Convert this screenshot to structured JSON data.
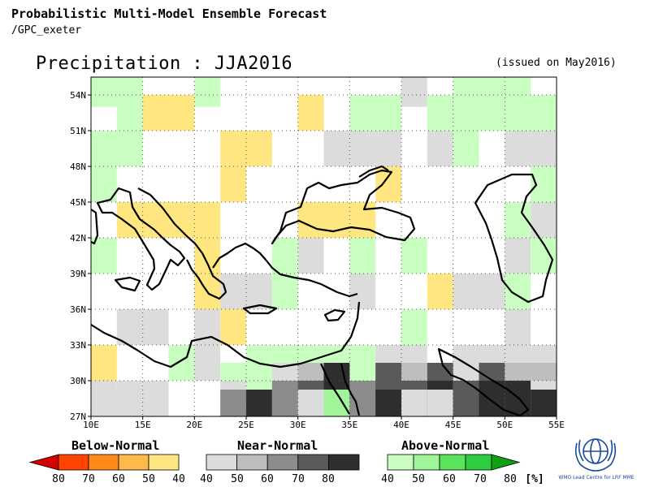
{
  "header": {
    "line1": "Probabilistic Multi-Model Ensemble Forecast",
    "line2": "/GPC_exeter"
  },
  "title": "Precipitation : JJA2016",
  "issued": "(issued on May2016)",
  "map": {
    "lon_ticks": [
      "10E",
      "15E",
      "20E",
      "25E",
      "30E",
      "35E",
      "40E",
      "45E",
      "50E",
      "55E"
    ],
    "lat_ticks": [
      "54N",
      "51N",
      "48N",
      "45N",
      "42N",
      "39N",
      "36N",
      "33N",
      "30N",
      "27N"
    ],
    "lon_range": [
      10,
      55
    ],
    "lat_range": [
      27,
      55.5
    ],
    "grid_style": "dotted",
    "cell_deg": [
      2.5,
      3
    ],
    "cells": [
      {
        "lon": 11.25,
        "lat": 54.5,
        "cat": "A40"
      },
      {
        "lon": 13.75,
        "lat": 54.5,
        "cat": "A40"
      },
      {
        "lon": 21.25,
        "lat": 54.5,
        "cat": "A40"
      },
      {
        "lon": 41.25,
        "lat": 54.5,
        "cat": "N40"
      },
      {
        "lon": 46.25,
        "lat": 54.5,
        "cat": "A40"
      },
      {
        "lon": 48.75,
        "lat": 54.5,
        "cat": "A40"
      },
      {
        "lon": 51.25,
        "lat": 54.5,
        "cat": "A40"
      },
      {
        "lon": 13.75,
        "lat": 52.5,
        "cat": "A40"
      },
      {
        "lon": 16.25,
        "lat": 52.5,
        "cat": "B40"
      },
      {
        "lon": 18.75,
        "lat": 52.5,
        "cat": "B40"
      },
      {
        "lon": 31.25,
        "lat": 52.5,
        "cat": "B40"
      },
      {
        "lon": 36.25,
        "lat": 52.5,
        "cat": "A40"
      },
      {
        "lon": 38.75,
        "lat": 52.5,
        "cat": "A40"
      },
      {
        "lon": 43.75,
        "lat": 52.5,
        "cat": "A40"
      },
      {
        "lon": 46.25,
        "lat": 52.5,
        "cat": "A40"
      },
      {
        "lon": 48.75,
        "lat": 52.5,
        "cat": "A40"
      },
      {
        "lon": 51.25,
        "lat": 52.5,
        "cat": "A40"
      },
      {
        "lon": 53.75,
        "lat": 52.5,
        "cat": "A40"
      },
      {
        "lon": 11.25,
        "lat": 49.5,
        "cat": "A40"
      },
      {
        "lon": 13.75,
        "lat": 49.5,
        "cat": "A40"
      },
      {
        "lon": 23.75,
        "lat": 49.5,
        "cat": "B40"
      },
      {
        "lon": 26.25,
        "lat": 49.5,
        "cat": "B40"
      },
      {
        "lon": 33.75,
        "lat": 49.5,
        "cat": "N40"
      },
      {
        "lon": 36.25,
        "lat": 49.5,
        "cat": "N40"
      },
      {
        "lon": 38.75,
        "lat": 49.5,
        "cat": "N40"
      },
      {
        "lon": 43.75,
        "lat": 49.5,
        "cat": "N40"
      },
      {
        "lon": 46.25,
        "lat": 49.5,
        "cat": "A40"
      },
      {
        "lon": 51.25,
        "lat": 49.5,
        "cat": "N40"
      },
      {
        "lon": 53.75,
        "lat": 49.5,
        "cat": "N40"
      },
      {
        "lon": 11.25,
        "lat": 46.5,
        "cat": "A40"
      },
      {
        "lon": 23.75,
        "lat": 46.5,
        "cat": "B40"
      },
      {
        "lon": 38.75,
        "lat": 46.5,
        "cat": "B40"
      },
      {
        "lon": 53.75,
        "lat": 46.5,
        "cat": "A40"
      },
      {
        "lon": 13.75,
        "lat": 43.5,
        "cat": "B40"
      },
      {
        "lon": 16.25,
        "lat": 43.5,
        "cat": "B40"
      },
      {
        "lon": 18.75,
        "lat": 43.5,
        "cat": "B40"
      },
      {
        "lon": 21.25,
        "lat": 43.5,
        "cat": "B40"
      },
      {
        "lon": 31.25,
        "lat": 43.5,
        "cat": "B40"
      },
      {
        "lon": 33.75,
        "lat": 43.5,
        "cat": "B40"
      },
      {
        "lon": 36.25,
        "lat": 43.5,
        "cat": "B40"
      },
      {
        "lon": 51.25,
        "lat": 43.5,
        "cat": "A40"
      },
      {
        "lon": 53.75,
        "lat": 43.5,
        "cat": "N40"
      },
      {
        "lon": 11.25,
        "lat": 40.5,
        "cat": "A40"
      },
      {
        "lon": 21.25,
        "lat": 40.5,
        "cat": "B40"
      },
      {
        "lon": 28.75,
        "lat": 40.5,
        "cat": "A40"
      },
      {
        "lon": 31.25,
        "lat": 40.5,
        "cat": "N40"
      },
      {
        "lon": 36.25,
        "lat": 40.5,
        "cat": "A40"
      },
      {
        "lon": 41.25,
        "lat": 40.5,
        "cat": "A40"
      },
      {
        "lon": 51.25,
        "lat": 40.5,
        "cat": "N40"
      },
      {
        "lon": 53.75,
        "lat": 40.5,
        "cat": "A40"
      },
      {
        "lon": 21.25,
        "lat": 37.5,
        "cat": "B40"
      },
      {
        "lon": 23.75,
        "lat": 37.5,
        "cat": "N40"
      },
      {
        "lon": 26.25,
        "lat": 37.5,
        "cat": "N40"
      },
      {
        "lon": 28.75,
        "lat": 37.5,
        "cat": "A40"
      },
      {
        "lon": 36.25,
        "lat": 37.5,
        "cat": "N40"
      },
      {
        "lon": 43.75,
        "lat": 37.5,
        "cat": "B40"
      },
      {
        "lon": 46.25,
        "lat": 37.5,
        "cat": "N40"
      },
      {
        "lon": 48.75,
        "lat": 37.5,
        "cat": "N40"
      },
      {
        "lon": 51.25,
        "lat": 37.5,
        "cat": "A40"
      },
      {
        "lon": 13.75,
        "lat": 34.5,
        "cat": "N40"
      },
      {
        "lon": 16.25,
        "lat": 34.5,
        "cat": "N40"
      },
      {
        "lon": 21.25,
        "lat": 34.5,
        "cat": "N40"
      },
      {
        "lon": 23.75,
        "lat": 34.5,
        "cat": "B40"
      },
      {
        "lon": 41.25,
        "lat": 34.5,
        "cat": "A40"
      },
      {
        "lon": 51.25,
        "lat": 34.5,
        "cat": "N40"
      },
      {
        "lon": 11.25,
        "lat": 31.5,
        "cat": "B40"
      },
      {
        "lon": 18.75,
        "lat": 31.5,
        "cat": "A40"
      },
      {
        "lon": 21.25,
        "lat": 31.5,
        "cat": "N40"
      },
      {
        "lon": 26.25,
        "lat": 31.5,
        "cat": "A40"
      },
      {
        "lon": 28.75,
        "lat": 31.5,
        "cat": "A40"
      },
      {
        "lon": 31.25,
        "lat": 31.5,
        "cat": "A40"
      },
      {
        "lon": 33.75,
        "lat": 31.5,
        "cat": "A40"
      },
      {
        "lon": 36.25,
        "lat": 31.5,
        "cat": "A40"
      },
      {
        "lon": 38.75,
        "lat": 31.5,
        "cat": "N40"
      },
      {
        "lon": 41.25,
        "lat": 31.5,
        "cat": "N40"
      },
      {
        "lon": 46.25,
        "lat": 31.5,
        "cat": "N40"
      },
      {
        "lon": 48.75,
        "lat": 31.5,
        "cat": "N40"
      },
      {
        "lon": 51.25,
        "lat": 31.5,
        "cat": "N40"
      },
      {
        "lon": 53.75,
        "lat": 31.5,
        "cat": "N40"
      },
      {
        "lon": 23.75,
        "lat": 30.0,
        "cat": "A40"
      },
      {
        "lon": 26.25,
        "lat": 30.0,
        "cat": "A40"
      },
      {
        "lon": 28.75,
        "lat": 30.0,
        "cat": "N40"
      },
      {
        "lon": 31.25,
        "lat": 30.0,
        "cat": "N50"
      },
      {
        "lon": 33.75,
        "lat": 30.0,
        "cat": "N80"
      },
      {
        "lon": 38.75,
        "lat": 30.0,
        "cat": "N70"
      },
      {
        "lon": 41.25,
        "lat": 30.0,
        "cat": "N50"
      },
      {
        "lon": 43.75,
        "lat": 30.0,
        "cat": "N70"
      },
      {
        "lon": 48.75,
        "lat": 30.0,
        "cat": "N70"
      },
      {
        "lon": 51.25,
        "lat": 30.0,
        "cat": "N50"
      },
      {
        "lon": 53.75,
        "lat": 30.0,
        "cat": "N50"
      },
      {
        "lon": 11.25,
        "lat": 28.5,
        "cat": "N40"
      },
      {
        "lon": 13.75,
        "lat": 28.5,
        "cat": "N40"
      },
      {
        "lon": 16.25,
        "lat": 28.5,
        "cat": "N40"
      },
      {
        "lon": 23.75,
        "lat": 28.5,
        "cat": "N40"
      },
      {
        "lon": 28.75,
        "lat": 28.5,
        "cat": "N60"
      },
      {
        "lon": 31.25,
        "lat": 28.5,
        "cat": "N70"
      },
      {
        "lon": 33.75,
        "lat": 28.5,
        "cat": "N80"
      },
      {
        "lon": 36.25,
        "lat": 28.5,
        "cat": "N60"
      },
      {
        "lon": 38.75,
        "lat": 28.5,
        "cat": "N70"
      },
      {
        "lon": 41.25,
        "lat": 28.5,
        "cat": "N70"
      },
      {
        "lon": 43.75,
        "lat": 28.5,
        "cat": "N80"
      },
      {
        "lon": 46.25,
        "lat": 28.5,
        "cat": "N70"
      },
      {
        "lon": 48.75,
        "lat": 28.5,
        "cat": "N80"
      },
      {
        "lon": 51.25,
        "lat": 28.5,
        "cat": "N80"
      },
      {
        "lon": 53.75,
        "lat": 28.5,
        "cat": "N40"
      },
      {
        "lon": 11.25,
        "lat": 27.75,
        "cat": "N40"
      },
      {
        "lon": 13.75,
        "lat": 27.75,
        "cat": "N40"
      },
      {
        "lon": 23.75,
        "lat": 27.75,
        "cat": "N60"
      },
      {
        "lon": 26.25,
        "lat": 27.75,
        "cat": "N80"
      },
      {
        "lon": 28.75,
        "lat": 27.75,
        "cat": "N60"
      },
      {
        "lon": 31.25,
        "lat": 27.75,
        "cat": "N40"
      },
      {
        "lon": 33.75,
        "lat": 27.75,
        "cat": "A50"
      },
      {
        "lon": 36.25,
        "lat": 27.75,
        "cat": "N60"
      },
      {
        "lon": 38.75,
        "lat": 27.75,
        "cat": "N80"
      },
      {
        "lon": 41.25,
        "lat": 27.75,
        "cat": "N40"
      },
      {
        "lon": 43.75,
        "lat": 27.75,
        "cat": "N40"
      },
      {
        "lon": 46.25,
        "lat": 27.75,
        "cat": "N70"
      },
      {
        "lon": 48.75,
        "lat": 27.75,
        "cat": "N80"
      },
      {
        "lon": 51.25,
        "lat": 27.75,
        "cat": "N80"
      },
      {
        "lon": 53.75,
        "lat": 27.75,
        "cat": "N80"
      }
    ]
  },
  "legend": {
    "below": {
      "title": "Below-Normal",
      "labels": [
        "80",
        "70",
        "60",
        "50",
        "40"
      ],
      "colors": [
        "#d40000",
        "#ff4400",
        "#ff8a1a",
        "#ffb84a",
        "#ffe680"
      ]
    },
    "near": {
      "title": "Near-Normal",
      "labels": [
        "40",
        "50",
        "60",
        "70",
        "80"
      ],
      "colors": [
        "#dcdcdc",
        "#bebebe",
        "#8c8c8c",
        "#5a5a5a",
        "#2e2e2e"
      ]
    },
    "above": {
      "title": "Above-Normal",
      "labels": [
        "40",
        "50",
        "60",
        "70",
        "80"
      ],
      "unit": "[%]",
      "colors": [
        "#c8ffc0",
        "#a0f59a",
        "#5be35b",
        "#2ecc40",
        "#10a010"
      ]
    }
  },
  "logo": {
    "text": "WMO Lead Centre for LRF MME",
    "color": "#1a4aa0"
  },
  "colors": {
    "coast": "#000000",
    "grid": "#555555"
  }
}
